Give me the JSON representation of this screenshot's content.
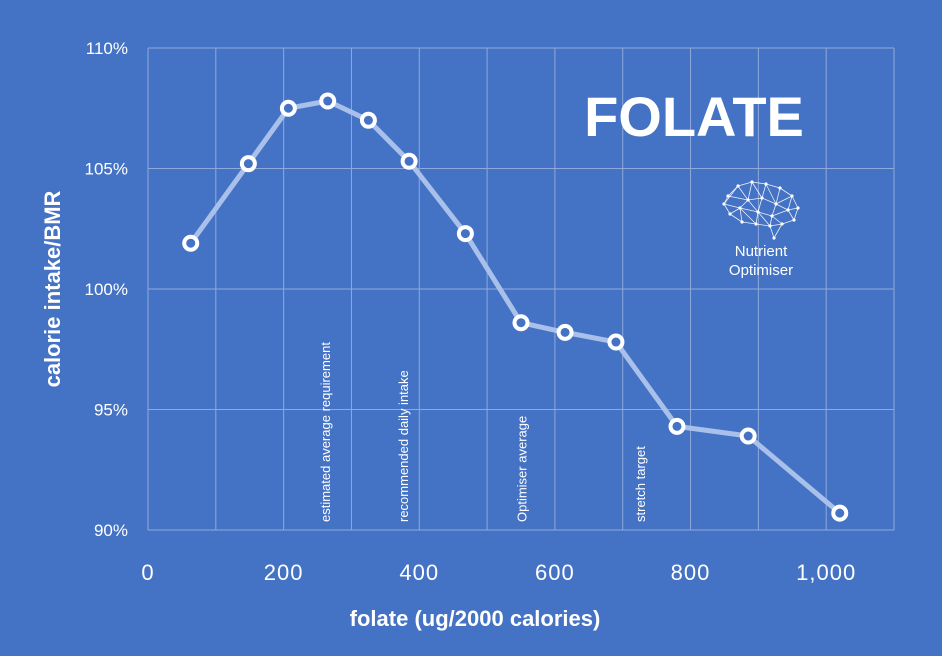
{
  "chart_data": {
    "type": "line",
    "title": "FOLATE",
    "xlabel": "folate (ug/2000 calories)",
    "ylabel": "calorie intake/BMR",
    "xlim": [
      0,
      1100
    ],
    "ylim": [
      90,
      110
    ],
    "x_ticks": [
      0,
      200,
      400,
      600,
      800,
      1000
    ],
    "x_tick_labels": [
      "0",
      "200",
      "400",
      "600",
      "800",
      "1,000"
    ],
    "y_ticks": [
      90,
      95,
      100,
      105,
      110
    ],
    "y_tick_labels": [
      "90%",
      "95%",
      "100%",
      "105%",
      "110%"
    ],
    "grid": true,
    "series": [
      {
        "x": [
          63,
          148,
          207,
          265,
          325,
          385,
          468,
          550,
          615,
          690,
          780,
          885,
          1020
        ],
        "y": [
          101.9,
          105.2,
          107.5,
          107.8,
          107.0,
          105.3,
          102.3,
          98.6,
          98.2,
          97.8,
          94.3,
          93.9,
          90.7
        ]
      }
    ],
    "reference_lines": [
      {
        "x": 280,
        "label": "estimated average requirement"
      },
      {
        "x": 395,
        "label": "recommended daily intake"
      },
      {
        "x": 570,
        "label": "Optimiser average"
      },
      {
        "x": 745,
        "label": "stretch target"
      }
    ]
  },
  "logo": {
    "line1": "Nutrient",
    "line2": "Optimiser",
    "icon": "brain-network-icon"
  }
}
